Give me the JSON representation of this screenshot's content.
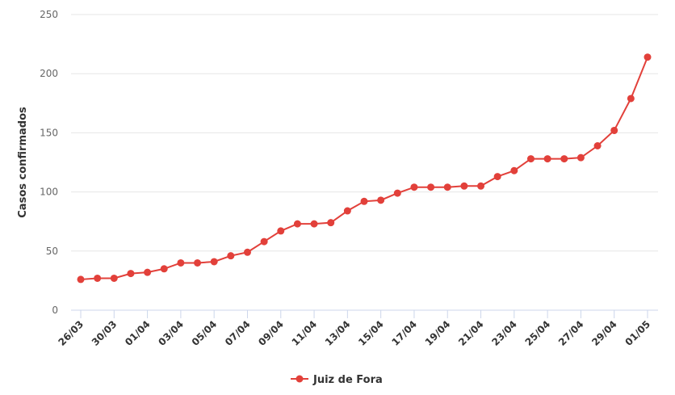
{
  "chart_data": {
    "type": "line",
    "y_label": "Casos confirmados",
    "categories": [
      "26/03",
      null,
      "30/03",
      null,
      "01/04",
      null,
      "03/04",
      null,
      "05/04",
      null,
      "07/04",
      null,
      "09/04",
      null,
      "11/04",
      null,
      "13/04",
      null,
      "15/04",
      null,
      "17/04",
      null,
      "19/04",
      null,
      "21/04",
      null,
      "23/04",
      null,
      "25/04",
      null,
      "27/04",
      null,
      "29/04",
      null,
      "01/05"
    ],
    "series": [
      {
        "name": "Juiz de Fora",
        "color": "#e2403a",
        "values": [
          26,
          27,
          27,
          31,
          32,
          35,
          40,
          40,
          41,
          46,
          49,
          58,
          67,
          73,
          73,
          74,
          84,
          92,
          93,
          99,
          104,
          104,
          104,
          105,
          105,
          113,
          118,
          128,
          128,
          128,
          129,
          139,
          152,
          179,
          214
        ]
      }
    ],
    "ylim": [
      0,
      250
    ],
    "yticks": [
      0,
      50,
      100,
      150,
      200,
      250
    ],
    "grid": true,
    "legend": "bottom"
  }
}
